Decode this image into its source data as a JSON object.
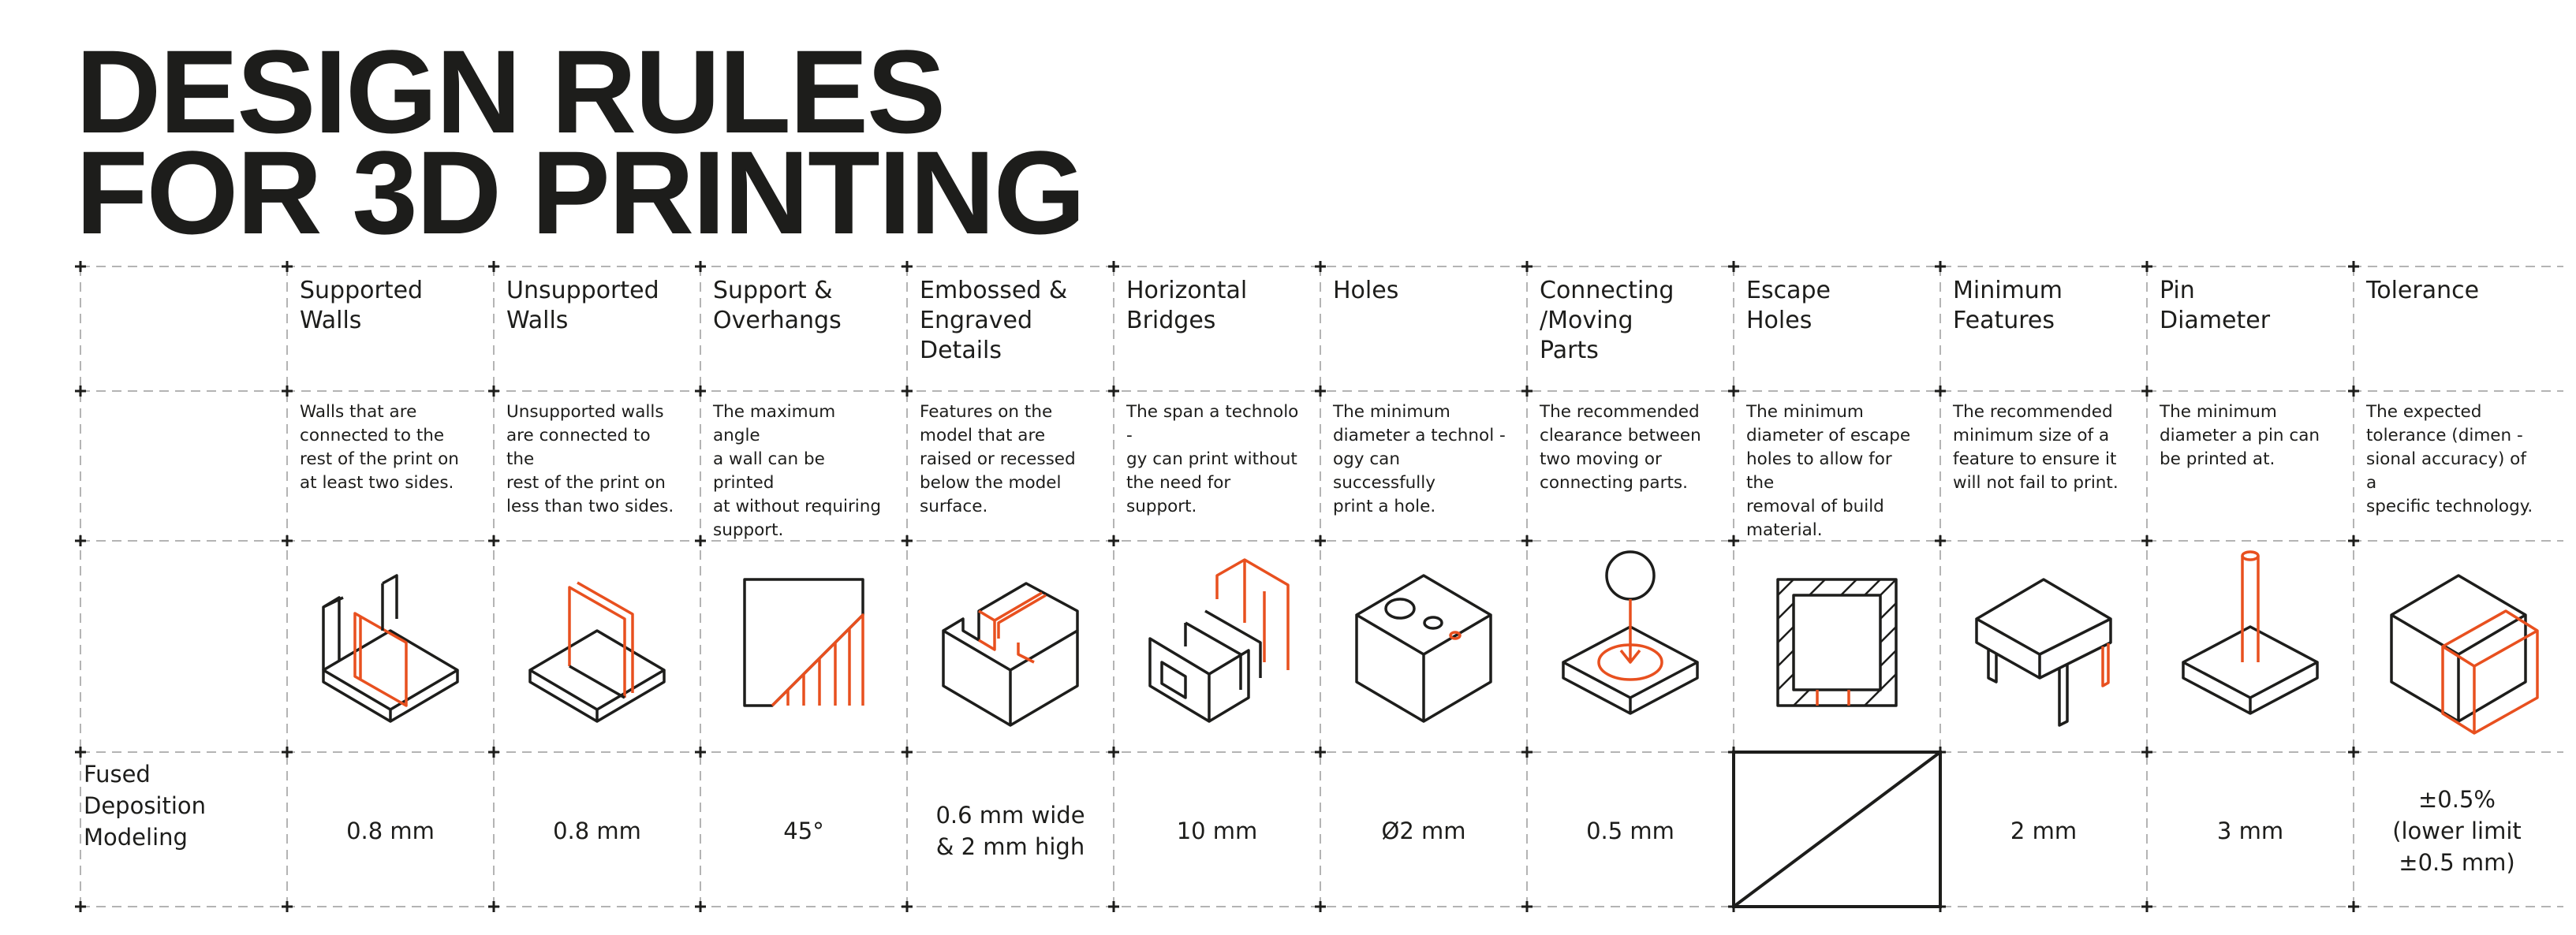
{
  "title": {
    "line1": "DESIGN RULES",
    "line2": "FOR 3D PRINTING"
  },
  "row_label": {
    "line1": "Fused",
    "line2": "Deposition",
    "line3": "Modeling"
  },
  "colors": {
    "text": "#1d1d1b",
    "accent": "#e8501f",
    "grid": "#b4b4b4"
  },
  "columns": [
    {
      "header": [
        "Supported",
        "Walls"
      ],
      "description": [
        "Walls that are",
        "connected to the",
        "rest of the print on",
        "at least two sides."
      ],
      "icon": "supported-walls-icon",
      "value": [
        "0.8 mm"
      ]
    },
    {
      "header": [
        "Unsupported",
        "Walls"
      ],
      "description": [
        "Unsupported walls",
        "are connected to the",
        "rest of the print on",
        "less than two sides."
      ],
      "icon": "unsupported-walls-icon",
      "value": [
        "0.8 mm"
      ]
    },
    {
      "header": [
        "Support &",
        "Overhangs"
      ],
      "description": [
        "The maximum angle",
        "a wall can be printed",
        "at without requiring",
        "support."
      ],
      "icon": "overhang-icon",
      "value": [
        "45°"
      ]
    },
    {
      "header": [
        "Embossed &",
        "Engraved",
        "Details"
      ],
      "description": [
        "Features on the",
        "model that are",
        "raised or recessed",
        "below the model",
        "surface."
      ],
      "icon": "embossed-details-icon",
      "value": [
        "0.6 mm wide",
        "& 2 mm high"
      ]
    },
    {
      "header": [
        "Horizontal",
        "Bridges"
      ],
      "description": [
        "The span a technolo   -",
        "gy can print without",
        "the need for",
        "support."
      ],
      "icon": "horizontal-bridges-icon",
      "value": [
        "10 mm"
      ]
    },
    {
      "header": [
        "Holes"
      ],
      "description": [
        "The minimum",
        "diameter a technol   -",
        "ogy can successfully",
        "print a hole."
      ],
      "icon": "holes-icon",
      "value": [
        "Ø2 mm"
      ]
    },
    {
      "header": [
        "Connecting",
        "/Moving",
        "Parts"
      ],
      "description": [
        "The recommended",
        "clearance between",
        "two moving or",
        "connecting parts."
      ],
      "icon": "moving-parts-icon",
      "value": [
        "0.5 mm"
      ]
    },
    {
      "header": [
        "Escape",
        "Holes"
      ],
      "description": [
        "The minimum",
        "diameter of escape",
        "holes to allow for the",
        "removal of build",
        "material."
      ],
      "icon": "escape-holes-icon",
      "value": [],
      "not_applicable": true
    },
    {
      "header": [
        "Minimum",
        "Features"
      ],
      "description": [
        "The recommended",
        "minimum size of a",
        "feature to ensure it",
        "will not fail to print."
      ],
      "icon": "minimum-features-icon",
      "value": [
        "2 mm"
      ]
    },
    {
      "header": [
        "Pin",
        "Diameter"
      ],
      "description": [
        "The minimum",
        "diameter a pin can",
        "be printed at."
      ],
      "icon": "pin-diameter-icon",
      "value": [
        "3 mm"
      ]
    },
    {
      "header": [
        "Tolerance"
      ],
      "description": [
        "The expected",
        "tolerance (dimen    -",
        "sional accuracy) of a",
        "specific technology."
      ],
      "icon": "tolerance-icon",
      "value": [
        "±0.5%",
        "(lower limit",
        "±0.5 mm)"
      ]
    }
  ]
}
